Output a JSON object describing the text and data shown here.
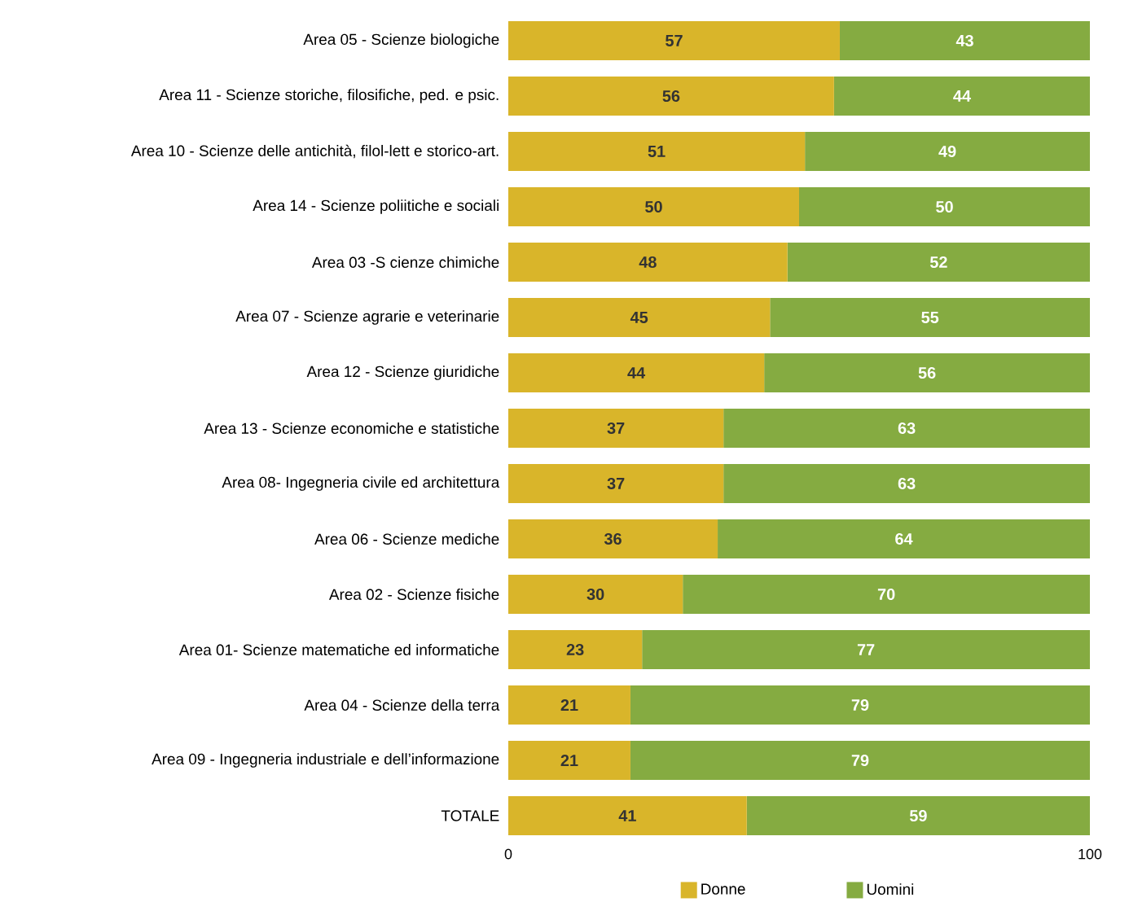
{
  "chart_data": {
    "type": "bar",
    "orientation": "horizontal",
    "stacked": true,
    "data_labels": true,
    "legend": "bottom",
    "grid": false,
    "categories": [
      "Area 05 - Scienze biologiche",
      "Area 11 - Scienze storiche, filosifiche, ped. e psic.",
      "Area 10 - Scienze  delle antichità, filol-lett e storico-art.",
      "Area 14 - Scienze poliitiche e sociali",
      "Area 03 -S cienze chimiche",
      "Area 07 - Scienze  agrarie e veterinarie",
      "Area 12 - Scienze giuridiche",
      "Area 13 - Scienze economiche e statistiche",
      "Area 08- Ingegneria civile ed architettura",
      "Area 06 - Scienze mediche",
      "Area 02 - Scienze fisiche",
      "Area 01- Scienze matematiche ed informatiche",
      "Area 04 - Scienze della terra",
      "Area 09 - Ingegneria industriale e dell’informazione",
      "TOTALE"
    ],
    "series": [
      {
        "name": "Donne",
        "color": "#d9b52a",
        "values": [
          57,
          56,
          51,
          50,
          48,
          45,
          44,
          37,
          37,
          36,
          30,
          23,
          21,
          21,
          41
        ]
      },
      {
        "name": "Uomini",
        "color": "#85ab41",
        "values": [
          43,
          44,
          49,
          50,
          52,
          55,
          56,
          63,
          63,
          64,
          70,
          77,
          79,
          79,
          59
        ]
      }
    ],
    "xlim": [
      0,
      100
    ],
    "xticks": [
      0,
      100
    ]
  }
}
